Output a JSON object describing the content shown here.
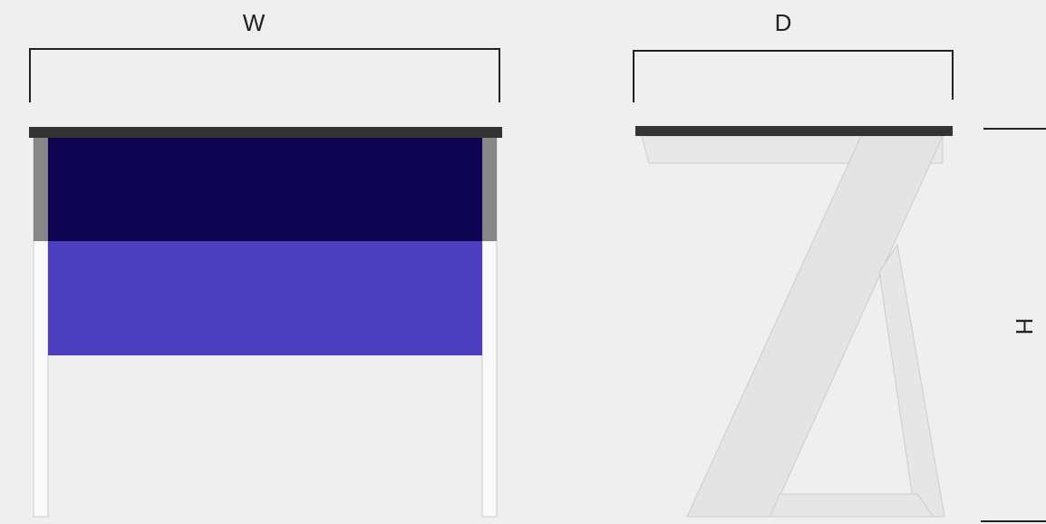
{
  "labels": {
    "width": "W",
    "depth": "D",
    "height": "H"
  }
}
